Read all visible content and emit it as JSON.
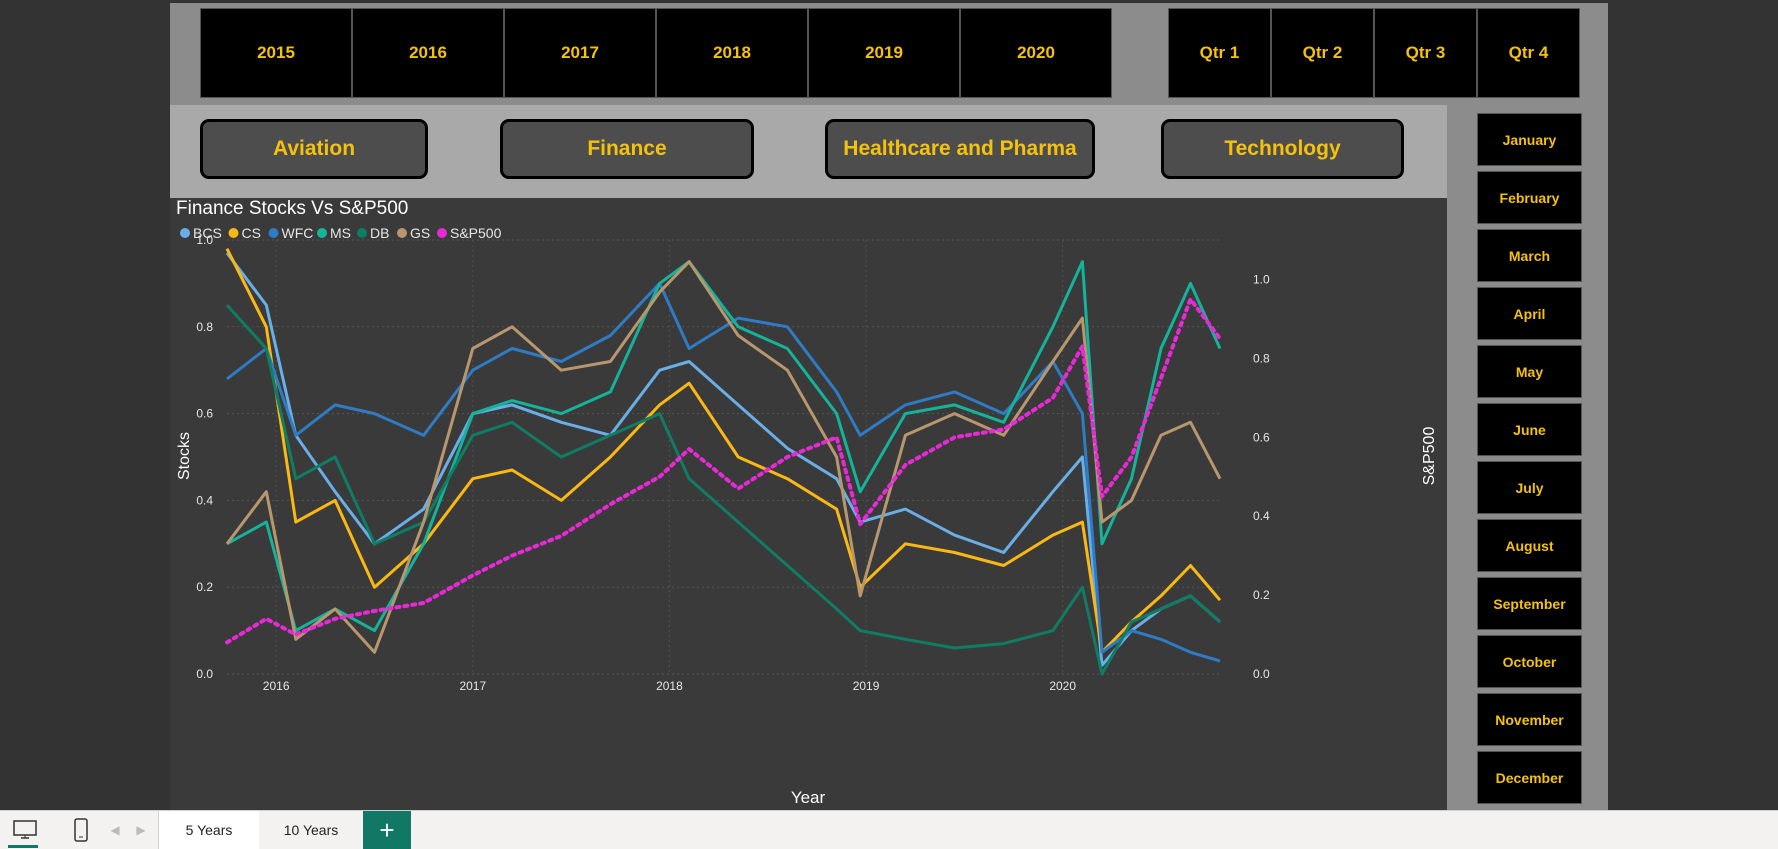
{
  "years": [
    "2015",
    "2016",
    "2017",
    "2018",
    "2019",
    "2020"
  ],
  "quarters": [
    "Qtr 1",
    "Qtr 2",
    "Qtr 3",
    "Qtr 4"
  ],
  "sectors": [
    "Aviation",
    "Finance",
    "Healthcare and Pharma",
    "Technology"
  ],
  "months": [
    "January",
    "February",
    "March",
    "April",
    "May",
    "June",
    "July",
    "August",
    "September",
    "October",
    "November",
    "December"
  ],
  "colors": {
    "button_bg": "#000000",
    "button_text": "#f4c20d",
    "chart_bg": "#3a3a3a",
    "accent_tab": "#117865"
  },
  "chart_data": {
    "type": "line",
    "title": "Finance Stocks Vs S&P500",
    "xlabel": "Year",
    "ylabel": "Stocks",
    "y2label": "S&P500",
    "x_ticks": [
      "2016",
      "2017",
      "2018",
      "2019",
      "2020"
    ],
    "y_ticks": [
      "0.0",
      "0.2",
      "0.4",
      "0.6",
      "0.8",
      "1.0"
    ],
    "y2_ticks": [
      "0.0",
      "0.2",
      "0.4",
      "0.6",
      "0.8",
      "1.0"
    ],
    "xlim": [
      2015.75,
      2020.8
    ],
    "ylim": [
      0,
      1
    ],
    "y2lim": [
      0,
      1.1
    ],
    "legend_position": "top-left",
    "x": [
      2015.75,
      2015.95,
      2016.1,
      2016.3,
      2016.5,
      2016.75,
      2017.0,
      2017.2,
      2017.45,
      2017.7,
      2017.95,
      2018.1,
      2018.35,
      2018.6,
      2018.85,
      2018.97,
      2019.2,
      2019.45,
      2019.7,
      2019.95,
      2020.1,
      2020.2,
      2020.35,
      2020.5,
      2020.65,
      2020.8
    ],
    "series": [
      {
        "name": "BCS",
        "color": "#6aaee8",
        "axis": "left",
        "values": [
          0.97,
          0.85,
          0.55,
          0.42,
          0.3,
          0.38,
          0.6,
          0.62,
          0.58,
          0.55,
          0.7,
          0.72,
          0.62,
          0.52,
          0.45,
          0.35,
          0.38,
          0.32,
          0.28,
          0.42,
          0.5,
          0.02,
          0.1,
          0.15,
          0.18,
          0.12
        ]
      },
      {
        "name": "CS",
        "color": "#f9b814",
        "axis": "left",
        "values": [
          0.98,
          0.8,
          0.35,
          0.4,
          0.2,
          0.3,
          0.45,
          0.47,
          0.4,
          0.5,
          0.62,
          0.67,
          0.5,
          0.45,
          0.38,
          0.2,
          0.3,
          0.28,
          0.25,
          0.32,
          0.35,
          0.05,
          0.12,
          0.18,
          0.25,
          0.17
        ]
      },
      {
        "name": "WFC",
        "color": "#2f7bc4",
        "axis": "left",
        "values": [
          0.68,
          0.75,
          0.55,
          0.62,
          0.6,
          0.55,
          0.7,
          0.75,
          0.72,
          0.78,
          0.9,
          0.75,
          0.82,
          0.8,
          0.65,
          0.55,
          0.62,
          0.65,
          0.6,
          0.72,
          0.6,
          0.05,
          0.1,
          0.08,
          0.05,
          0.03
        ]
      },
      {
        "name": "MS",
        "color": "#14b39a",
        "axis": "left",
        "values": [
          0.3,
          0.35,
          0.1,
          0.15,
          0.1,
          0.3,
          0.6,
          0.63,
          0.6,
          0.65,
          0.9,
          0.95,
          0.8,
          0.75,
          0.6,
          0.42,
          0.6,
          0.62,
          0.58,
          0.8,
          0.95,
          0.3,
          0.45,
          0.75,
          0.9,
          0.75
        ]
      },
      {
        "name": "DB",
        "color": "#0e7d63",
        "axis": "left",
        "values": [
          0.85,
          0.75,
          0.45,
          0.5,
          0.3,
          0.35,
          0.55,
          0.58,
          0.5,
          0.55,
          0.6,
          0.45,
          0.35,
          0.25,
          0.15,
          0.1,
          0.08,
          0.06,
          0.07,
          0.1,
          0.2,
          0.0,
          0.12,
          0.15,
          0.18,
          0.12
        ]
      },
      {
        "name": "GS",
        "color": "#b8976f",
        "axis": "left",
        "values": [
          0.3,
          0.42,
          0.08,
          0.15,
          0.05,
          0.35,
          0.75,
          0.8,
          0.7,
          0.72,
          0.88,
          0.95,
          0.78,
          0.7,
          0.5,
          0.18,
          0.55,
          0.6,
          0.55,
          0.72,
          0.82,
          0.35,
          0.4,
          0.55,
          0.58,
          0.45
        ]
      },
      {
        "name": "S&P500",
        "color": "#e82ad6",
        "axis": "right",
        "dotted": true,
        "values": [
          0.08,
          0.14,
          0.1,
          0.14,
          0.16,
          0.18,
          0.25,
          0.3,
          0.35,
          0.43,
          0.5,
          0.57,
          0.47,
          0.55,
          0.6,
          0.38,
          0.53,
          0.6,
          0.62,
          0.7,
          0.83,
          0.45,
          0.55,
          0.75,
          0.95,
          0.85
        ]
      }
    ]
  },
  "taskbar": {
    "tabs": [
      "5 Years",
      "10 Years"
    ],
    "add_tab": "+"
  }
}
